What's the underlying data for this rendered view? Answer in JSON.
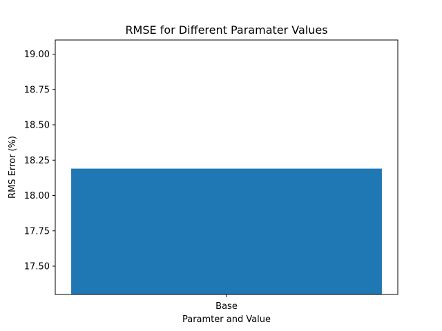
{
  "chart_data": {
    "type": "bar",
    "title": "RMSE for Different Paramater Values",
    "xlabel": "Paramter and Value",
    "ylabel": "RMS Error (%)",
    "categories": [
      "Base"
    ],
    "values": [
      18.19
    ],
    "ylim": [
      17.3,
      19.1
    ],
    "yticks": [
      17.5,
      17.75,
      18.0,
      18.25,
      18.5,
      18.75,
      19.0
    ],
    "ytick_labels": [
      "17.50",
      "17.75",
      "18.00",
      "18.25",
      "18.50",
      "18.75",
      "19.00"
    ],
    "grid": false,
    "bar_color": "#1f77b4"
  }
}
